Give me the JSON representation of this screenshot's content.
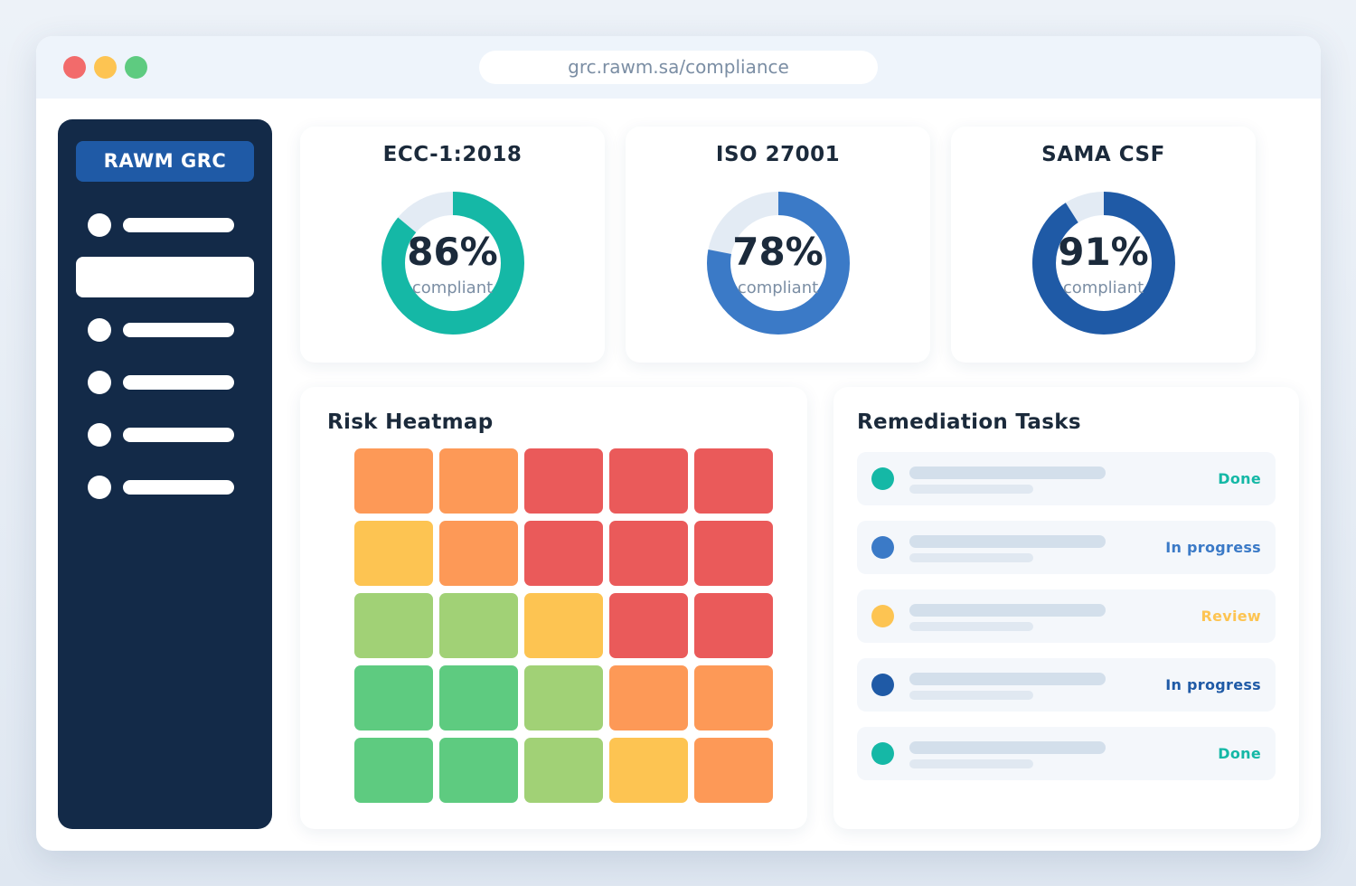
{
  "window": {
    "traffic_lights": [
      "#f26b6b",
      "#fdc452",
      "#5ecb80"
    ],
    "url": "grc.rawm.sa/compliance"
  },
  "sidebar": {
    "brand": "RAWM GRC",
    "active_index": 1
  },
  "kpis": [
    {
      "title": "ECC-1:2018",
      "percent": 86,
      "value_label": "86%",
      "sub": "compliant",
      "color": "#15b8a6"
    },
    {
      "title": "ISO 27001",
      "percent": 78,
      "value_label": "78%",
      "sub": "compliant",
      "color": "#3b7ac7"
    },
    {
      "title": "SAMA CSF",
      "percent": 91,
      "value_label": "91%",
      "sub": "compliant",
      "color": "#1f5aa6"
    }
  ],
  "heatmap": {
    "title": "Risk Heatmap",
    "palette": {
      "red": "#ea5a5a",
      "orange": "#fd9957",
      "yellow": "#fdc452",
      "lightgreen": "#a1d176",
      "green": "#5ecb80"
    },
    "rows": [
      [
        "orange",
        "orange",
        "red",
        "red",
        "red"
      ],
      [
        "yellow",
        "orange",
        "red",
        "red",
        "red"
      ],
      [
        "lightgreen",
        "lightgreen",
        "yellow",
        "red",
        "red"
      ],
      [
        "green",
        "green",
        "lightgreen",
        "orange",
        "orange"
      ],
      [
        "green",
        "green",
        "lightgreen",
        "yellow",
        "orange"
      ]
    ]
  },
  "tasks": {
    "title": "Remediation Tasks",
    "items": [
      {
        "status": "Done",
        "color": "#15b8a6"
      },
      {
        "status": "In progress",
        "color": "#3b7ac7"
      },
      {
        "status": "Review",
        "color": "#fdc452"
      },
      {
        "status": "In progress",
        "color": "#1f5aa6"
      },
      {
        "status": "Done",
        "color": "#15b8a6"
      }
    ]
  }
}
